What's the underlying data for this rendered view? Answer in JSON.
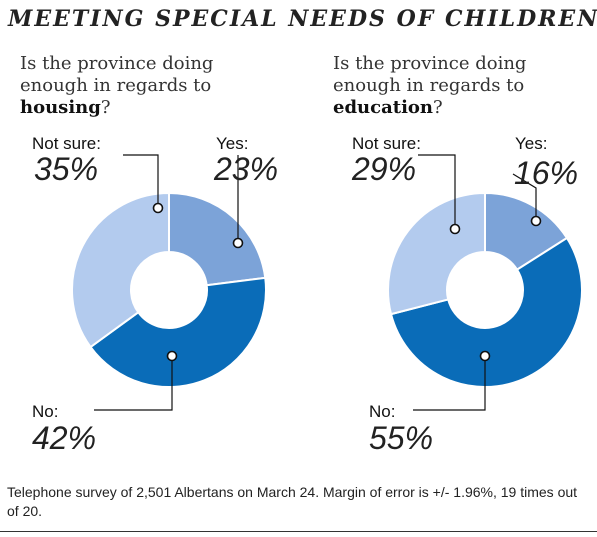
{
  "title": "MEETING SPECIAL NEEDS OF CHILDREN:",
  "chart_data": [
    {
      "type": "pie",
      "question_prefix": "Is the province doing enough in regards to",
      "question_topic": "housing",
      "question_suffix": "?",
      "slices": [
        {
          "name": "Yes:",
          "value": 23,
          "display": "23%",
          "color": "#7ca3d8"
        },
        {
          "name": "No:",
          "value": 42,
          "display": "42%",
          "color": "#0a6cb8"
        },
        {
          "name": "Not sure:",
          "value": 35,
          "display": "35%",
          "color": "#b3cbee"
        }
      ]
    },
    {
      "type": "pie",
      "question_prefix": "Is the province doing enough in regards to",
      "question_topic": "education",
      "question_suffix": "?",
      "slices": [
        {
          "name": "Yes:",
          "value": 16,
          "display": "16%",
          "color": "#7ca3d8"
        },
        {
          "name": "No:",
          "value": 55,
          "display": "55%",
          "color": "#0a6cb8"
        },
        {
          "name": "Not sure:",
          "value": 29,
          "display": "29%",
          "color": "#b3cbee"
        }
      ]
    }
  ],
  "footnote": "Telephone survey of 2,501 Albertans on March 24. Margin of error is +/- 1.96%, 19 times out of 20."
}
